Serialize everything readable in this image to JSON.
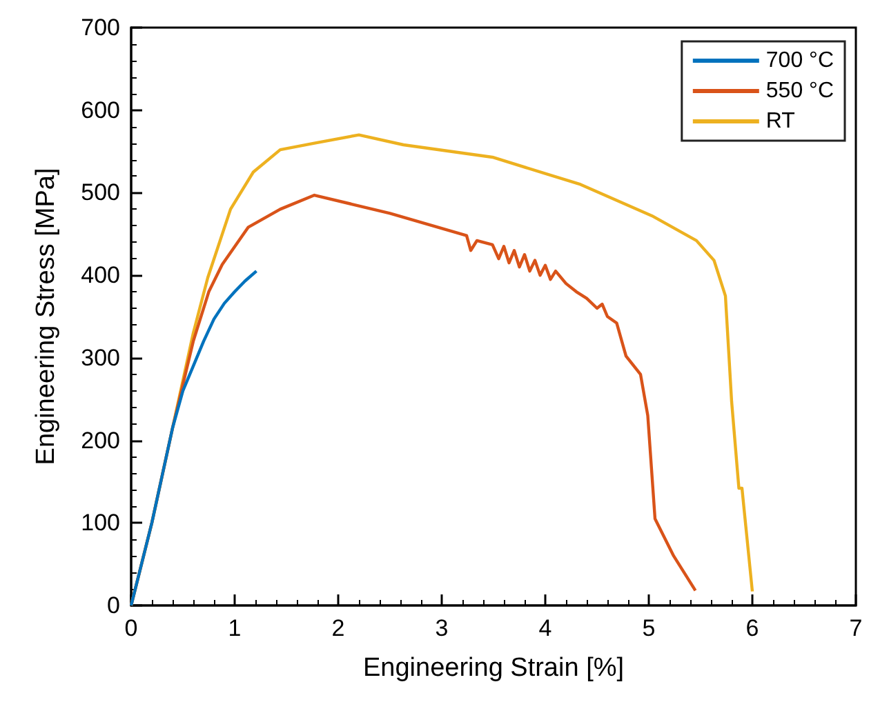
{
  "chart_data": {
    "type": "line",
    "xlabel": "Engineering Strain [%]",
    "ylabel": "Engineering Stress [MPa]",
    "xlim": [
      0,
      7
    ],
    "xticks": [
      0,
      1,
      2,
      3,
      4,
      5,
      6,
      7
    ],
    "ylim": [
      0,
      700
    ],
    "yticks": [
      0,
      100,
      200,
      300,
      400,
      500,
      600,
      700
    ],
    "grid": false,
    "legend": "top right",
    "marker": "none",
    "line_style": "solid",
    "series": [
      {
        "name": "700 °C",
        "color": "#0072bd",
        "x": [
          0,
          0.2,
          0.4,
          0.5,
          0.6,
          0.7,
          0.8,
          0.9,
          1.0,
          1.1,
          1.21
        ],
        "values": [
          0,
          100,
          215,
          260,
          290,
          320,
          347,
          366,
          380,
          393,
          405
        ]
      },
      {
        "name": "550 °C",
        "color": "#d95319",
        "x": [
          0,
          0.2,
          0.4,
          0.6,
          0.75,
          0.88,
          1.13,
          1.44,
          1.77,
          2.5,
          3.24,
          3.28,
          3.34,
          3.49,
          3.55,
          3.6,
          3.65,
          3.7,
          3.75,
          3.8,
          3.85,
          3.9,
          3.95,
          4.0,
          4.05,
          4.1,
          4.2,
          4.3,
          4.4,
          4.5,
          4.55,
          4.6,
          4.69,
          4.78,
          4.92,
          4.99,
          5.06,
          5.24,
          5.45
        ],
        "values": [
          0,
          100,
          215,
          320,
          380,
          413,
          458,
          480,
          497,
          475,
          448,
          430,
          442,
          437,
          420,
          435,
          415,
          430,
          410,
          425,
          405,
          418,
          400,
          412,
          395,
          405,
          390,
          380,
          372,
          360,
          365,
          350,
          342,
          302,
          280,
          230,
          105,
          60,
          18
        ]
      },
      {
        "name": "RT",
        "color": "#edb120",
        "x": [
          0,
          0.2,
          0.4,
          0.6,
          0.74,
          0.96,
          1.18,
          1.44,
          1.77,
          2.2,
          2.63,
          3.49,
          4.34,
          5.03,
          5.46,
          5.63,
          5.74,
          5.8,
          5.87,
          5.9,
          6.0
        ],
        "values": [
          0,
          100,
          215,
          330,
          397,
          480,
          525,
          552,
          560,
          570,
          558,
          543,
          510,
          472,
          442,
          418,
          375,
          247,
          142,
          142,
          17
        ]
      }
    ]
  }
}
